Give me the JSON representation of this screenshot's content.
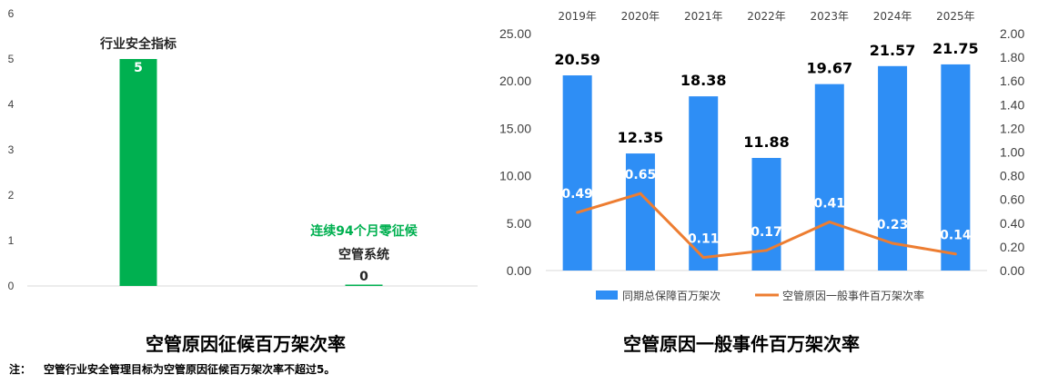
{
  "chart_data": [
    {
      "type": "bar",
      "title": "空管原因征候百万架次率",
      "ylim": [
        0,
        6
      ],
      "yticks": [
        "0",
        "1",
        "2",
        "3",
        "4",
        "5",
        "6"
      ],
      "grid": false,
      "bars": [
        {
          "label": "行业安全指标",
          "value": 5,
          "value_label": "5",
          "color": "#00b050"
        },
        {
          "label": "空管系统",
          "value": 0,
          "value_label": "0",
          "color": "#00b050",
          "annotation": "连续94个月零征候",
          "annotation_color": "#00b050"
        }
      ]
    },
    {
      "type": "bar",
      "title": "空管原因一般事件百万架次率",
      "categories": [
        "2019年",
        "2020年",
        "2021年",
        "2022年",
        "2023年",
        "2024年",
        "2025年"
      ],
      "ylim": [
        0,
        25
      ],
      "yticks": [
        "0.00",
        "5.00",
        "10.00",
        "15.00",
        "20.00",
        "25.00"
      ],
      "y2lim": [
        0,
        2
      ],
      "y2ticks": [
        "0.00",
        "0.20",
        "0.40",
        "0.60",
        "0.80",
        "1.00",
        "1.20",
        "1.40",
        "1.60",
        "1.80",
        "2.00"
      ],
      "legend_position": "bottom",
      "series": [
        {
          "name": "同期总保障百万架次",
          "type": "bar",
          "axis": "left",
          "color": "#2e8ef5",
          "values": [
            20.59,
            12.35,
            18.38,
            11.88,
            19.67,
            21.57,
            21.75
          ],
          "labels": [
            "20.59",
            "12.35",
            "18.38",
            "11.88",
            "19.67",
            "21.57",
            "21.75"
          ]
        },
        {
          "name": "空管原因一般事件百万架次率",
          "type": "line",
          "axis": "right",
          "color": "#ed7d31",
          "values": [
            0.49,
            0.65,
            0.11,
            0.17,
            0.41,
            0.23,
            0.14
          ],
          "labels": [
            "0.49",
            "0.65",
            "0.11",
            "0.17",
            "0.41",
            "0.23",
            "0.14"
          ]
        }
      ]
    }
  ],
  "note": {
    "prefix": "注：",
    "text": "空管行业安全管理目标为空管原因征候百万架次率不超过5。"
  }
}
